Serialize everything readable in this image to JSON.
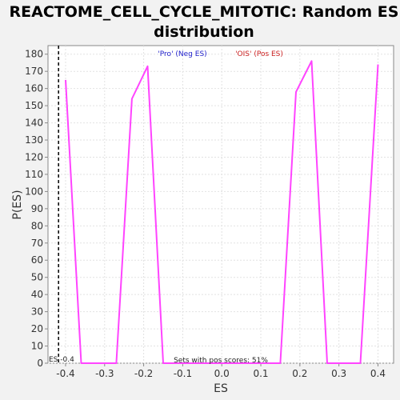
{
  "chart_data": {
    "type": "line",
    "title_lines": [
      "REACTOME_CELL_CYCLE_MITOTIC: Random ES",
      "distribution"
    ],
    "xlabel": "ES",
    "ylabel": "P(ES)",
    "xlim": [
      -0.445,
      0.44
    ],
    "ylim": [
      0,
      185
    ],
    "xticks": [
      -0.4,
      -0.3,
      -0.2,
      -0.1,
      0.0,
      0.1,
      0.2,
      0.3,
      0.4
    ],
    "xtick_labels": [
      "-0.4",
      "-0.3",
      "-0.2",
      "-0.1",
      "0.0",
      "0.1",
      "0.2",
      "0.3",
      "0.4"
    ],
    "yticks": [
      0,
      10,
      20,
      30,
      40,
      50,
      60,
      70,
      80,
      90,
      100,
      110,
      120,
      130,
      140,
      150,
      160,
      170,
      180
    ],
    "ytick_labels": [
      "0",
      "10",
      "20",
      "30",
      "40",
      "50",
      "60",
      "70",
      "80",
      "90",
      "100",
      "110",
      "120",
      "130",
      "140",
      "150",
      "160",
      "170",
      "180"
    ],
    "grid": true,
    "series": [
      {
        "color": "#ff44ff",
        "x": [
          -0.4,
          -0.36,
          -0.27,
          -0.23,
          -0.19,
          -0.15,
          0.15,
          0.19,
          0.23,
          0.27,
          0.355,
          0.4
        ],
        "y": [
          165,
          0,
          0,
          154,
          173,
          0,
          0,
          158,
          176,
          0,
          0,
          174
        ]
      }
    ],
    "legend": [
      {
        "text": "'Pro' (Neg ES)",
        "color": "#2222cc"
      },
      {
        "text": "'OIS' (Pos ES)",
        "color": "#cc2222"
      }
    ],
    "vline": {
      "x": -0.418,
      "label": "ES -0.4"
    },
    "annotation": "Sets with pos scores: 51%"
  }
}
